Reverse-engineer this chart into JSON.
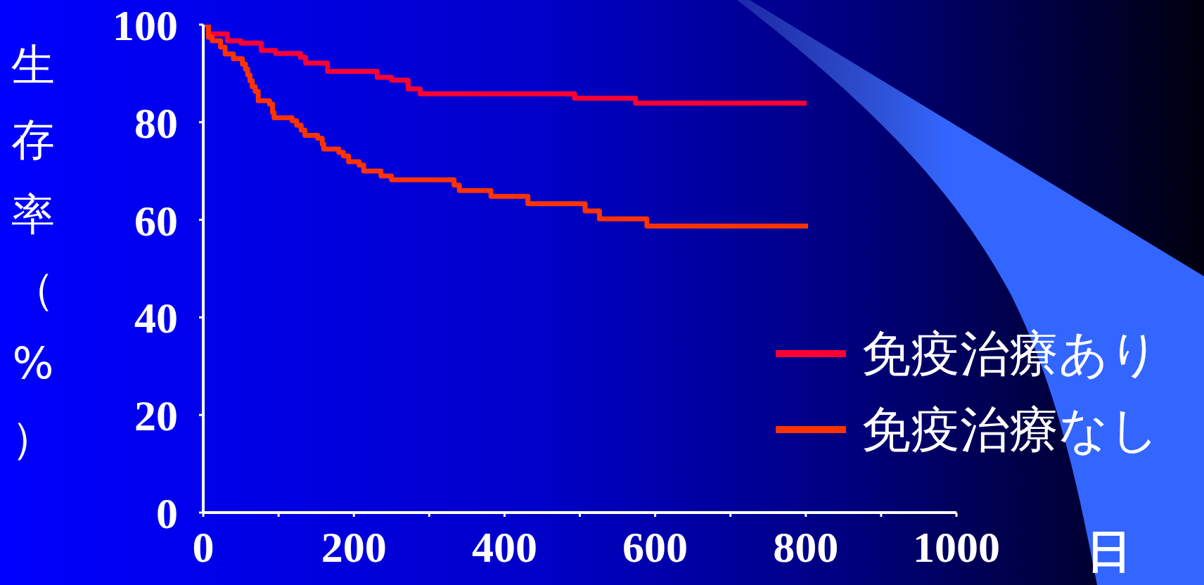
{
  "chart_data": {
    "type": "step",
    "ylabel": "生存率（%）",
    "xlabel": "日",
    "xlim": [
      0,
      1000
    ],
    "xticks": [
      0,
      {
        "value": 100,
        "label": null
      },
      200,
      {
        "value": 300,
        "label": null
      },
      400,
      {
        "value": 500,
        "label": null
      },
      600,
      {
        "value": 700,
        "label": null
      },
      800,
      {
        "value": 900,
        "label": null
      },
      1000
    ],
    "ylim": [
      0,
      100
    ],
    "yticks": [
      0,
      20,
      40,
      60,
      80,
      100
    ],
    "grid": false,
    "legend": "bottom right",
    "marker": "none",
    "line_style": "solid",
    "series": [
      {
        "name": "免疫治療あり",
        "color": "#ff0033",
        "x": [
          0,
          7,
          32,
          50,
          77,
          96,
          129,
          136,
          165,
          231,
          250,
          272,
          288,
          493,
          574,
          801
        ],
        "values": [
          100,
          98.1,
          96.7,
          96.2,
          94.7,
          94.1,
          93.3,
          92.1,
          90.4,
          89.2,
          88.6,
          86.8,
          85.8,
          84.9,
          83.9,
          83.9
        ]
      },
      {
        "name": "免疫治療なし",
        "color": "#ff3300",
        "x": [
          0,
          7,
          12,
          23,
          29,
          40,
          52,
          56,
          59,
          62,
          65,
          69,
          73,
          88,
          92,
          94,
          118,
          124,
          130,
          135,
          152,
          158,
          160,
          180,
          186,
          193,
          207,
          213,
          236,
          250,
          333,
          340,
          382,
          431,
          507,
          526,
          589,
          803
        ],
        "values": [
          100,
          97.4,
          96.7,
          95.4,
          94.0,
          93.0,
          91.9,
          90.9,
          89.7,
          88.5,
          87.3,
          86.3,
          84.4,
          83.7,
          82.0,
          80.9,
          80.3,
          79.4,
          78.4,
          77.3,
          76.7,
          75.5,
          74.5,
          73.8,
          73.1,
          71.9,
          71.2,
          70.0,
          69.0,
          68.2,
          67.1,
          66.0,
          64.8,
          63.3,
          61.8,
          60.2,
          58.7,
          58.7
        ]
      }
    ]
  }
}
